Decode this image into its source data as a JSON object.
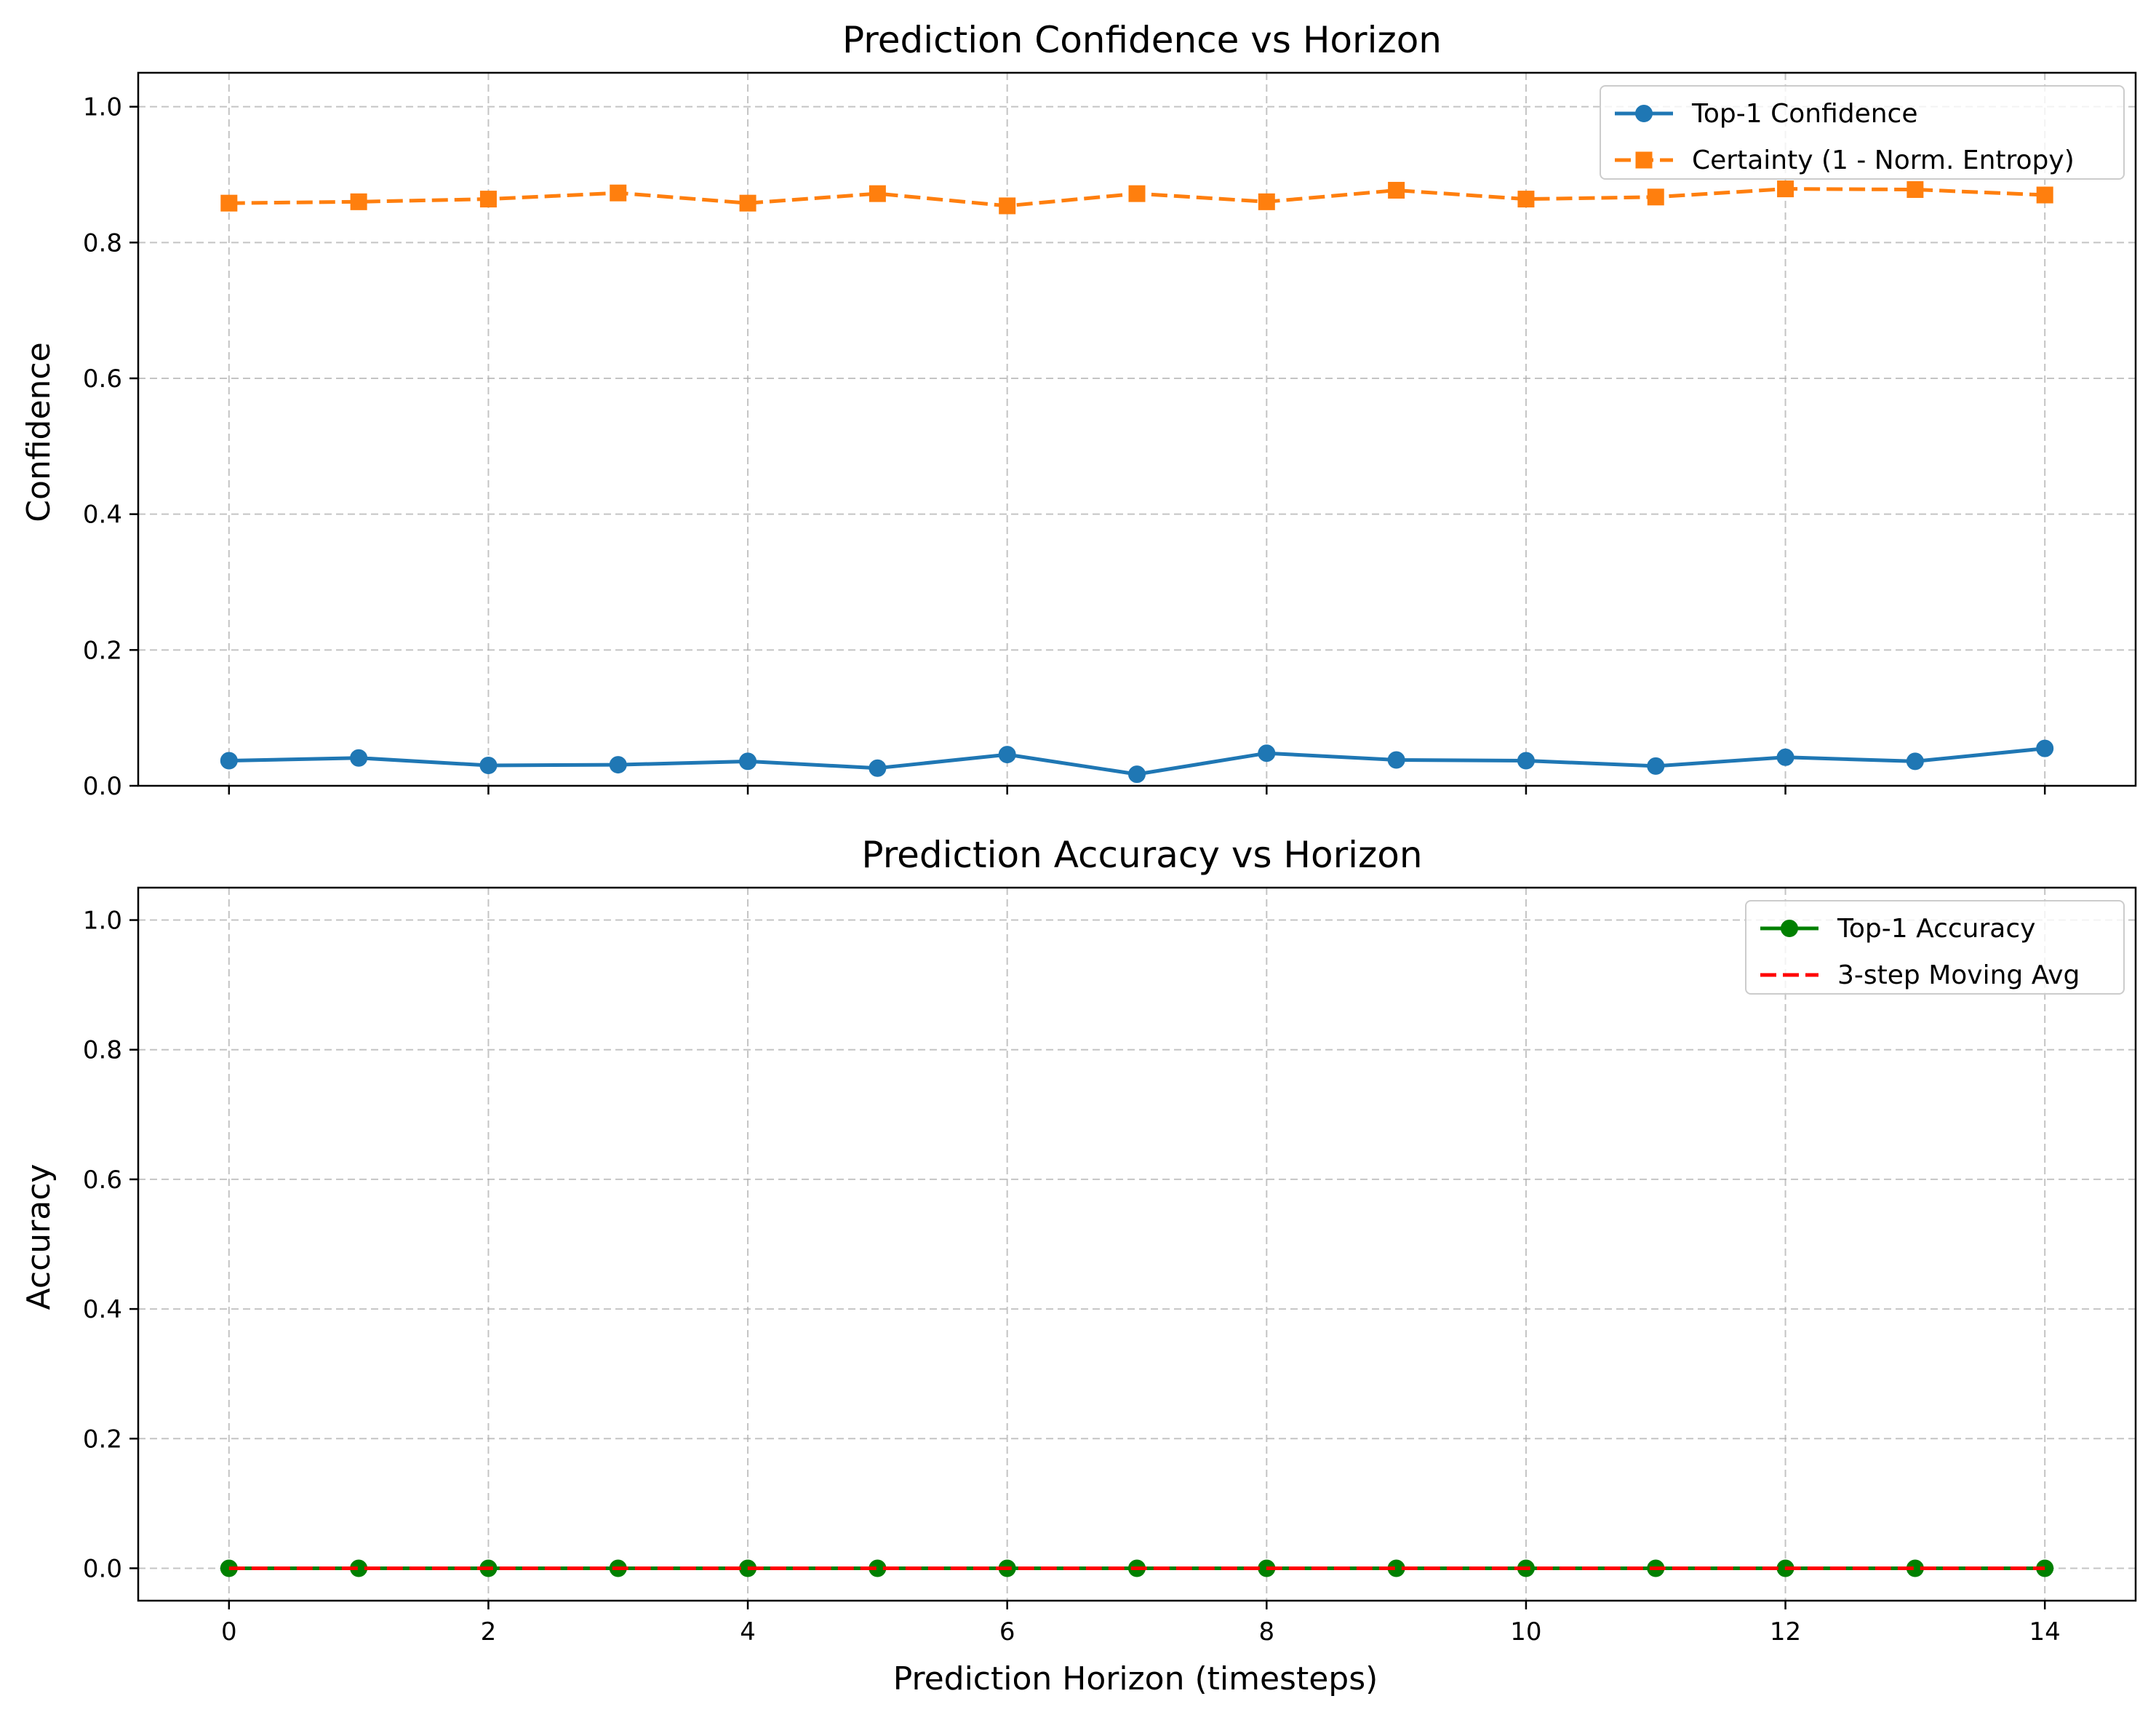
{
  "chart_data": [
    {
      "type": "line",
      "title": "Prediction Confidence vs Horizon",
      "xlabel": "",
      "ylabel": "Confidence",
      "xlim": [
        -0.7,
        14.7
      ],
      "ylim": [
        0.0,
        1.05
      ],
      "xticks": [
        "0",
        "2",
        "4",
        "6",
        "8",
        "10",
        "12",
        "14"
      ],
      "yticks": [
        "0.0",
        "0.2",
        "0.4",
        "0.6",
        "0.8",
        "1.0"
      ],
      "grid": true,
      "legend_position": "upper right",
      "x": [
        0,
        1,
        2,
        3,
        4,
        5,
        6,
        7,
        8,
        9,
        10,
        11,
        12,
        13,
        14
      ],
      "series": [
        {
          "name": "Top-1 Confidence",
          "color": "#1f77b4",
          "linestyle": "solid",
          "marker": "circle",
          "values": [
            0.037,
            0.041,
            0.03,
            0.031,
            0.036,
            0.026,
            0.046,
            0.017,
            0.048,
            0.038,
            0.037,
            0.029,
            0.042,
            0.036,
            0.055
          ]
        },
        {
          "name": "Certainty (1 - Norm. Entropy)",
          "color": "#ff7f0e",
          "linestyle": "dashed",
          "marker": "square",
          "values": [
            0.858,
            0.86,
            0.864,
            0.873,
            0.858,
            0.872,
            0.854,
            0.872,
            0.86,
            0.877,
            0.864,
            0.867,
            0.879,
            0.878,
            0.87
          ]
        }
      ]
    },
    {
      "type": "line",
      "title": "Prediction Accuracy vs Horizon",
      "xlabel": "Prediction Horizon (timesteps)",
      "ylabel": "Accuracy",
      "xlim": [
        -0.7,
        14.7
      ],
      "ylim": [
        -0.05,
        1.05
      ],
      "xticks": [
        "0",
        "2",
        "4",
        "6",
        "8",
        "10",
        "12",
        "14"
      ],
      "yticks": [
        "0.0",
        "0.2",
        "0.4",
        "0.6",
        "0.8",
        "1.0"
      ],
      "grid": true,
      "legend_position": "upper right",
      "x": [
        0,
        1,
        2,
        3,
        4,
        5,
        6,
        7,
        8,
        9,
        10,
        11,
        12,
        13,
        14
      ],
      "series": [
        {
          "name": "Top-1 Accuracy",
          "color": "#008000",
          "linestyle": "solid",
          "marker": "circle",
          "values": [
            0,
            0,
            0,
            0,
            0,
            0,
            0,
            0,
            0,
            0,
            0,
            0,
            0,
            0,
            0
          ]
        },
        {
          "name": "3-step Moving Avg",
          "color": "#ff0000",
          "linestyle": "dashed",
          "marker": "none",
          "values": [
            0,
            0,
            0,
            0,
            0,
            0,
            0,
            0,
            0,
            0,
            0,
            0,
            0,
            0,
            0
          ]
        }
      ]
    }
  ]
}
